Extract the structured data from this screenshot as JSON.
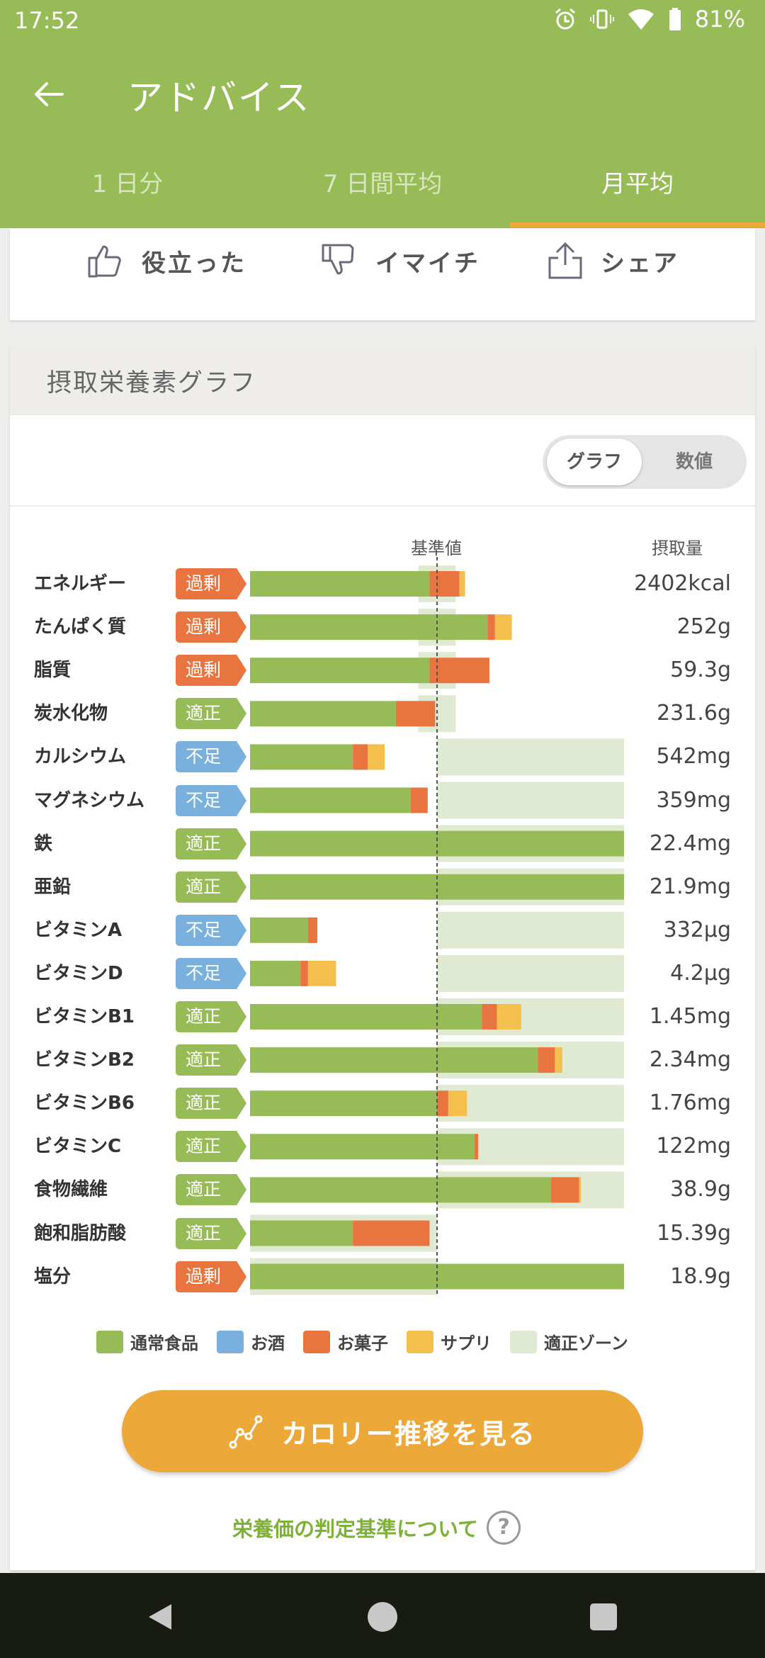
{
  "status": {
    "time": "17:52",
    "battery": "81%"
  },
  "appbar": {
    "title": "アドバイス"
  },
  "tabs": [
    {
      "label": "1 日分"
    },
    {
      "label": "7 日間平均"
    },
    {
      "label": "月平均"
    }
  ],
  "feedback": {
    "useful": "役立った",
    "notgood": "イマイチ",
    "share": "シェア"
  },
  "nutrition": {
    "title": "摂取栄養素グラフ",
    "toggle": {
      "graph": "グラフ",
      "value": "数値"
    },
    "header_standard": "基準値",
    "header_intake": "摂取量"
  },
  "colors": {
    "normal": "#97bb57",
    "alcohol": "#7ab0de",
    "snack": "#e8743f",
    "supplement": "#f4c04d",
    "zone": "#e0ead2",
    "excess": "#e8743f",
    "proper": "#97bb57",
    "lack": "#7ab0de"
  },
  "chart_data": {
    "type": "bar",
    "rows": [
      {
        "name": "エネルギー",
        "status": "過剰",
        "kind": "excess",
        "value": "2402kcal",
        "normal": 0.96,
        "alcohol": 0,
        "snack": 0.16,
        "supplement": 0.03,
        "zone": [
          0.9,
          1.1
        ]
      },
      {
        "name": "たんぱく質",
        "status": "過剰",
        "kind": "excess",
        "value": "252g",
        "normal": 1.27,
        "alcohol": 0,
        "snack": 0.04,
        "supplement": 0.09,
        "zone": [
          0.9,
          1.1
        ]
      },
      {
        "name": "脂質",
        "status": "過剰",
        "kind": "excess",
        "value": "59.3g",
        "normal": 0.96,
        "alcohol": 0,
        "snack": 0.32,
        "supplement": 0,
        "zone": [
          0.9,
          1.1
        ]
      },
      {
        "name": "炭水化物",
        "status": "適正",
        "kind": "proper",
        "value": "231.6g",
        "normal": 0.78,
        "alcohol": 0,
        "snack": 0.21,
        "supplement": 0,
        "zone": [
          0.9,
          1.1
        ]
      },
      {
        "name": "カルシウム",
        "status": "不足",
        "kind": "lack",
        "value": "542mg",
        "normal": 0.55,
        "alcohol": 0,
        "snack": 0.08,
        "supplement": 0.09,
        "zone": [
          1.0,
          2.0
        ]
      },
      {
        "name": "マグネシウム",
        "status": "不足",
        "kind": "lack",
        "value": "359mg",
        "normal": 0.86,
        "alcohol": 0,
        "snack": 0.09,
        "supplement": 0,
        "zone": [
          1.0,
          2.0
        ]
      },
      {
        "name": "鉄",
        "status": "適正",
        "kind": "proper",
        "value": "22.4mg",
        "normal": 2.0,
        "alcohol": 0,
        "snack": 0,
        "supplement": 0,
        "zone": [
          1.0,
          2.0
        ]
      },
      {
        "name": "亜鉛",
        "status": "適正",
        "kind": "proper",
        "value": "21.9mg",
        "normal": 2.0,
        "alcohol": 0,
        "snack": 0,
        "supplement": 0,
        "zone": [
          1.0,
          2.0
        ]
      },
      {
        "name": "ビタミンA",
        "status": "不足",
        "kind": "lack",
        "value": "332µg",
        "normal": 0.31,
        "alcohol": 0,
        "snack": 0.05,
        "supplement": 0,
        "zone": [
          1.0,
          2.0
        ]
      },
      {
        "name": "ビタミンD",
        "status": "不足",
        "kind": "lack",
        "value": "4.2µg",
        "normal": 0.27,
        "alcohol": 0,
        "snack": 0.04,
        "supplement": 0.15,
        "zone": [
          1.0,
          2.0
        ]
      },
      {
        "name": "ビタミンB1",
        "status": "適正",
        "kind": "proper",
        "value": "1.45mg",
        "normal": 1.24,
        "alcohol": 0,
        "snack": 0.08,
        "supplement": 0.13,
        "zone": [
          1.0,
          2.0
        ]
      },
      {
        "name": "ビタミンB2",
        "status": "適正",
        "kind": "proper",
        "value": "2.34mg",
        "normal": 1.54,
        "alcohol": 0,
        "snack": 0.09,
        "supplement": 0.04,
        "zone": [
          1.0,
          2.0
        ]
      },
      {
        "name": "ビタミンB6",
        "status": "適正",
        "kind": "proper",
        "value": "1.76mg",
        "normal": 1.0,
        "alcohol": 0,
        "snack": 0.06,
        "supplement": 0.1,
        "zone": [
          1.0,
          2.0
        ]
      },
      {
        "name": "ビタミンC",
        "status": "適正",
        "kind": "proper",
        "value": "122mg",
        "normal": 1.2,
        "alcohol": 0,
        "snack": 0.02,
        "supplement": 0,
        "zone": [
          1.0,
          2.0
        ]
      },
      {
        "name": "食物繊維",
        "status": "適正",
        "kind": "proper",
        "value": "38.9g",
        "normal": 1.61,
        "alcohol": 0,
        "snack": 0.15,
        "supplement": 0.01,
        "zone": [
          1.0,
          2.0
        ]
      },
      {
        "name": "飽和脂肪酸",
        "status": "適正",
        "kind": "proper",
        "value": "15.39g",
        "normal": 0.55,
        "alcohol": 0,
        "snack": 0.41,
        "supplement": 0,
        "zone": [
          0.0,
          1.0
        ]
      },
      {
        "name": "塩分",
        "status": "過剰",
        "kind": "excess",
        "value": "18.9g",
        "normal": 2.0,
        "alcohol": 0,
        "snack": 0,
        "supplement": 0,
        "zone": [
          0.0,
          1.0
        ]
      }
    ]
  },
  "legend": {
    "normal": "通常食品",
    "alcohol": "お酒",
    "snack": "お菓子",
    "supplement": "サプリ",
    "zone": "適正ゾーン"
  },
  "calorie_button": "カロリー推移を見る",
  "criteria_link": "栄養価の判定基準について",
  "help_glyph": "?"
}
